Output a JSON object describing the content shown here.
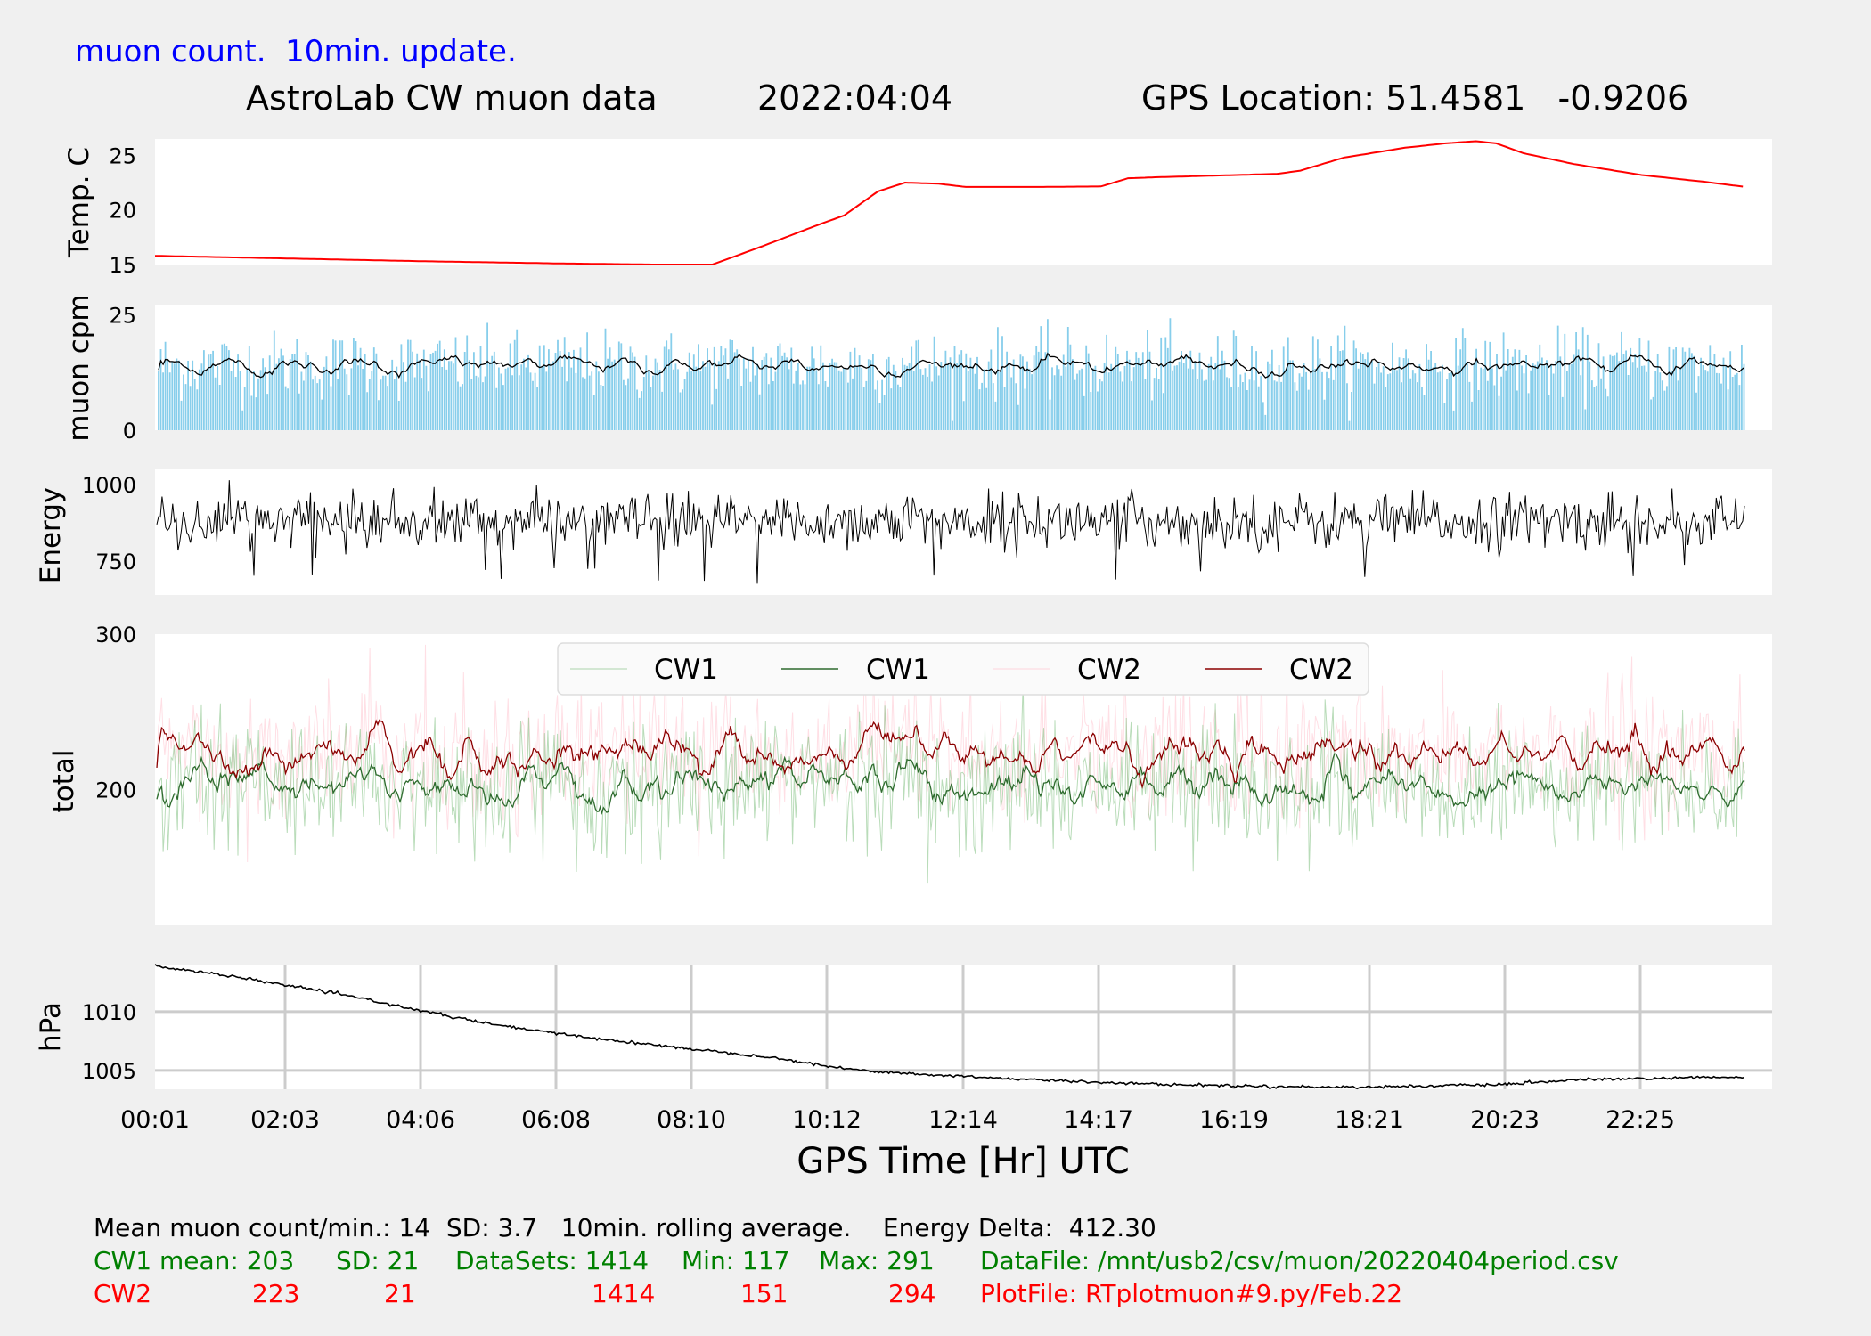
{
  "header": {
    "update_note": "muon count.  10min. update.",
    "title": "AstroLab CW muon data",
    "date": "2022:04:04",
    "location": "GPS Location: 51.4581   -0.9206"
  },
  "colors": {
    "background": "#f0f0f0",
    "panel": "#ffffff",
    "temperature": "#ff0000",
    "muon_bars": "#87ceeb",
    "rolling_avg": "#000000",
    "cw1_raw": "#7fc07f",
    "cw1_avg": "#2e6b2e",
    "cw2_raw": "#ffc0cb",
    "cw2_avg": "#8b0000",
    "grid": "#cccccc",
    "stats_cw1": "#008000",
    "stats_cw2": "#ff0000"
  },
  "x_tick_labels": [
    "00:01",
    "02:03",
    "04:06",
    "06:08",
    "08:10",
    "10:12",
    "12:14",
    "14:17",
    "16:19",
    "18:21",
    "20:23",
    "22:25"
  ],
  "xlabel": "GPS Time  [Hr] UTC",
  "chart_data": [
    {
      "type": "line",
      "ylabel": "Temp. C",
      "ylim": [
        15,
        26.5
      ],
      "yticks": [
        15,
        20,
        25
      ],
      "x_hours": [
        0,
        2,
        4,
        6,
        7.4,
        8.25,
        9.0,
        9.8,
        10.2,
        10.7,
        11.1,
        11.6,
        12.0,
        13.0,
        14.0,
        14.4,
        14.85,
        16.0,
        16.6,
        16.95,
        17.6,
        18.5,
        19.1,
        19.55,
        19.85,
        20.25,
        21.0,
        22.0,
        22.9,
        23.55
      ],
      "values": [
        15.8,
        15.55,
        15.3,
        15.1,
        15.0,
        15.0,
        16.7,
        18.6,
        19.5,
        21.7,
        22.5,
        22.4,
        22.1,
        22.1,
        22.15,
        22.9,
        23.0,
        23.2,
        23.3,
        23.6,
        24.8,
        25.7,
        26.1,
        26.3,
        26.1,
        25.2,
        24.2,
        23.2,
        22.6,
        22.1
      ],
      "grid": false,
      "series_color": "red"
    },
    {
      "type": "bar",
      "ylabel": "muon cpm",
      "ylim": [
        0,
        27
      ],
      "yticks": [
        0,
        25
      ],
      "sample_count": 1414,
      "mean": 14,
      "sd": 3.7,
      "rolling_average_window": "10min.",
      "grid": false
    },
    {
      "type": "line",
      "ylabel": "Energy",
      "yticks": [
        750,
        1000
      ],
      "ylim": [
        640,
        1050
      ],
      "mean": 880,
      "energy_delta": 412.3,
      "min": 630,
      "max": 1042,
      "grid": false
    },
    {
      "type": "line",
      "ylabel": "total",
      "yticks": [
        200,
        300
      ],
      "ylim": [
        113,
        300
      ],
      "legend": [
        "CW1",
        "CW1",
        "CW2",
        "CW2"
      ],
      "legend_placement": "top-center",
      "series": [
        {
          "name": "CW1",
          "mean": 203,
          "sd": 21,
          "min": 117,
          "max": 291,
          "datasets": 1414
        },
        {
          "name": "CW1",
          "rolling_average": true
        },
        {
          "name": "CW2",
          "mean": 223,
          "sd": 21,
          "min": 151,
          "max": 294,
          "datasets": 1414
        },
        {
          "name": "CW2",
          "rolling_average": true
        }
      ],
      "grid": false
    },
    {
      "type": "line",
      "ylabel": "hPa",
      "yticks": [
        1005,
        1010
      ],
      "ylim": [
        1003.4,
        1014.0
      ],
      "x_hours": [
        0,
        1.0,
        2.0,
        3.0,
        4.0,
        5.0,
        6.0,
        7.0,
        8.0,
        9.0,
        9.6,
        10.0,
        10.5,
        11.0,
        11.5,
        12.0,
        13.0,
        14.0,
        15.0,
        16.0,
        17.0,
        18.0,
        19.0,
        20.0,
        21.0,
        22.0,
        23.0,
        23.55
      ],
      "values": [
        1013.9,
        1013.1,
        1012.2,
        1011.2,
        1010.0,
        1008.9,
        1008.1,
        1007.4,
        1006.8,
        1006.2,
        1005.7,
        1005.3,
        1005.0,
        1004.8,
        1004.6,
        1004.5,
        1004.2,
        1004.0,
        1003.8,
        1003.7,
        1003.6,
        1003.6,
        1003.7,
        1003.8,
        1004.2,
        1004.3,
        1004.4,
        1004.4
      ],
      "grid": true
    }
  ],
  "stats": {
    "line1": "Mean muon count/min.: 14  SD: 3.7   10min. rolling average.    Energy Delta:  412.30",
    "cw1": {
      "label": "CW1 mean: 203",
      "sd": "SD: 21",
      "datasets": "DataSets: 1414",
      "min": "Min: 117",
      "max": "Max: 291",
      "file": "DataFile: /mnt/usb2/csv/muon/20220404period.csv"
    },
    "cw2": {
      "label": "CW2",
      "mean": "223",
      "sd": "21",
      "datasets": "1414",
      "min": "151",
      "max": "294",
      "file": "PlotFile: RTplotmuon#9.py/Feb.22"
    }
  }
}
